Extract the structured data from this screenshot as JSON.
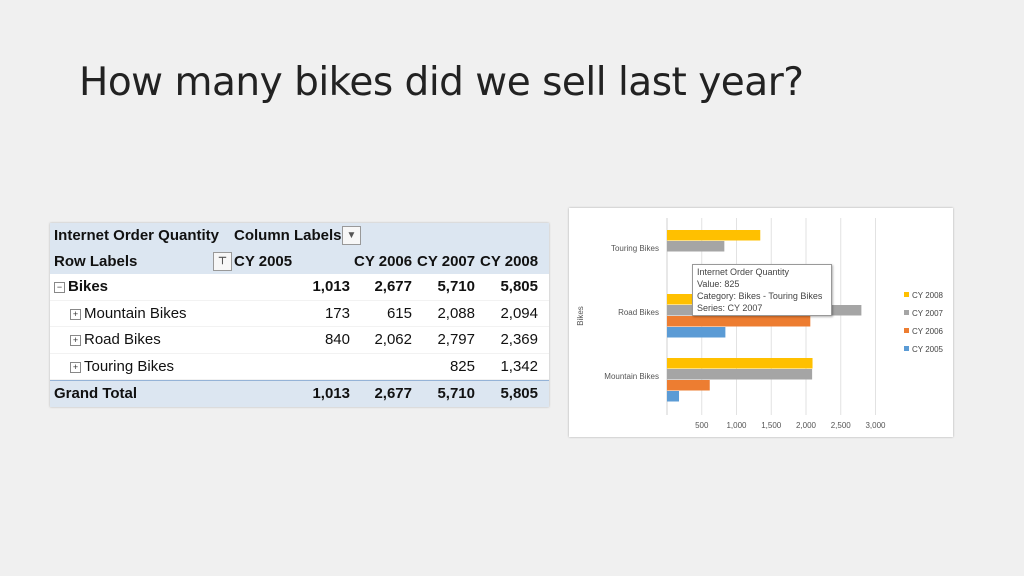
{
  "slide": {
    "title": "How many bikes did we sell last year?"
  },
  "pivot": {
    "header_title": "Internet Order Quantity",
    "column_labels": "Column Labels",
    "row_labels": "Row Labels",
    "columns": [
      "CY 2005",
      "CY 2006",
      "CY 2007",
      "CY 2008"
    ],
    "bikes": {
      "label": "Bikes",
      "values": [
        "1,013",
        "2,677",
        "5,710",
        "5,805"
      ]
    },
    "rows": [
      {
        "label": "Mountain Bikes",
        "values": [
          "173",
          "615",
          "2,088",
          "2,094"
        ]
      },
      {
        "label": "Road Bikes",
        "values": [
          "840",
          "2,062",
          "2,797",
          "2,369"
        ]
      },
      {
        "label": "Touring Bikes",
        "values": [
          "",
          "",
          "825",
          "1,342"
        ]
      }
    ],
    "grand_total": {
      "label": "Grand Total",
      "values": [
        "1,013",
        "2,677",
        "5,710",
        "5,805"
      ]
    }
  },
  "chart_data": {
    "type": "bar",
    "orientation": "horizontal",
    "categories": [
      "Touring Bikes",
      "Road Bikes",
      "Mountain Bikes"
    ],
    "series": [
      {
        "name": "CY 2008",
        "color": "#ffc000",
        "values": [
          1342,
          2369,
          2094
        ]
      },
      {
        "name": "CY 2007",
        "color": "#a5a5a5",
        "values": [
          825,
          2797,
          2088
        ]
      },
      {
        "name": "CY 2006",
        "color": "#ed7d31",
        "values": [
          0,
          2062,
          615
        ]
      },
      {
        "name": "CY 2005",
        "color": "#5b9bd5",
        "values": [
          0,
          840,
          173
        ]
      }
    ],
    "ylabel": "Bikes",
    "xlim": [
      0,
      3000
    ],
    "x_ticks": [
      "500",
      "1,000",
      "1,500",
      "2,000",
      "2,500",
      "3,000"
    ],
    "grid": true,
    "legend_position": "right",
    "legend_order": [
      "CY 2008",
      "CY 2007",
      "CY 2006",
      "CY 2005"
    ],
    "tooltip": {
      "title": "Internet Order Quantity",
      "value": "Value: 825",
      "category": "Category: Bikes - Touring Bikes",
      "series": "Series: CY 2007"
    }
  }
}
